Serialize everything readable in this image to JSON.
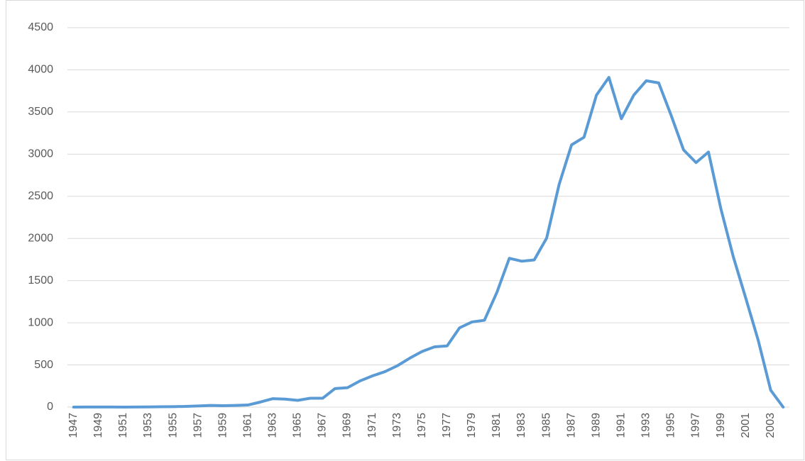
{
  "chart_data": {
    "type": "line",
    "categories": [
      "1947",
      null,
      "1949",
      null,
      "1951",
      null,
      "1953",
      null,
      "1955",
      null,
      "1957",
      null,
      "1959",
      null,
      "1961",
      null,
      "1963",
      null,
      "1965",
      null,
      "1967",
      null,
      "1969",
      null,
      "1971",
      null,
      "1973",
      null,
      "1975",
      null,
      "1977",
      null,
      "1979",
      null,
      "1981",
      null,
      "1983",
      null,
      "1985",
      null,
      "1987",
      null,
      "1989",
      null,
      "1991",
      null,
      "1993",
      null,
      "1995",
      null,
      "1997",
      null,
      "1999",
      null,
      "2001",
      null,
      "2003",
      null
    ],
    "series": [
      {
        "name": null,
        "color": "#5b9bd5",
        "values": [
          0,
          1,
          1,
          1,
          0,
          1,
          2,
          4,
          5,
          8,
          14,
          20,
          17,
          20,
          25,
          60,
          100,
          95,
          80,
          105,
          105,
          220,
          230,
          310,
          370,
          420,
          490,
          580,
          660,
          715,
          725,
          940,
          1010,
          1030,
          1360,
          1765,
          1730,
          1745,
          2005,
          2640,
          3110,
          3200,
          3700,
          3910,
          3420,
          3700,
          3870,
          3845,
          3460,
          3050,
          2900,
          3025,
          2350,
          1780,
          1290,
          790,
          200,
          0
        ]
      }
    ],
    "ylim": [
      0,
      4500
    ],
    "yticks": [
      0,
      500,
      1000,
      1500,
      2000,
      2500,
      3000,
      3500,
      4000,
      4500
    ],
    "grid": true
  }
}
